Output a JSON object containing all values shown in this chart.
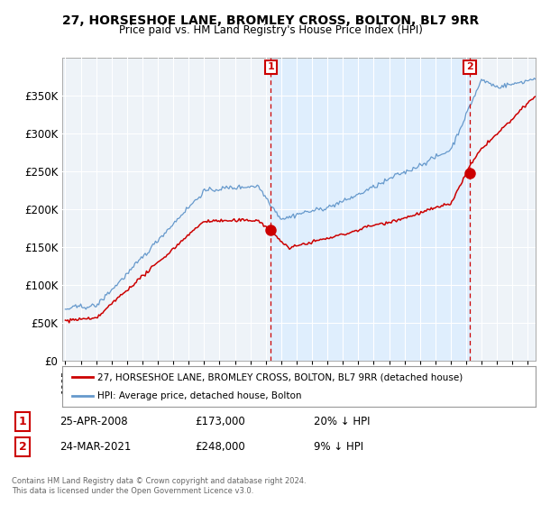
{
  "title": "27, HORSESHOE LANE, BROMLEY CROSS, BOLTON, BL7 9RR",
  "subtitle": "Price paid vs. HM Land Registry's House Price Index (HPI)",
  "legend_house": "27, HORSESHOE LANE, BROMLEY CROSS, BOLTON, BL7 9RR (detached house)",
  "legend_hpi": "HPI: Average price, detached house, Bolton",
  "sale1_date": "25-APR-2008",
  "sale1_price": "£173,000",
  "sale1_pct": "20% ↓ HPI",
  "sale2_date": "24-MAR-2021",
  "sale2_price": "£248,000",
  "sale2_pct": "9% ↓ HPI",
  "footnote": "Contains HM Land Registry data © Crown copyright and database right 2024.\nThis data is licensed under the Open Government Licence v3.0.",
  "house_color": "#cc0000",
  "hpi_color": "#6699cc",
  "fill_color": "#ddeeff",
  "sale_marker_color": "#cc0000",
  "vline_color": "#cc0000",
  "background_color": "#ffffff",
  "plot_bg_color": "#f0f4f8",
  "grid_color": "#cccccc",
  "ylim": [
    0,
    400000
  ],
  "yticks": [
    0,
    50000,
    100000,
    150000,
    200000,
    250000,
    300000,
    350000
  ],
  "ytick_labels": [
    "£0",
    "£50K",
    "£100K",
    "£150K",
    "£200K",
    "£250K",
    "£300K",
    "£350K"
  ],
  "sale1_x": 2008.32,
  "sale1_y": 173000,
  "sale2_x": 2021.23,
  "sale2_y": 248000,
  "xmin": 1994.8,
  "xmax": 2025.5
}
